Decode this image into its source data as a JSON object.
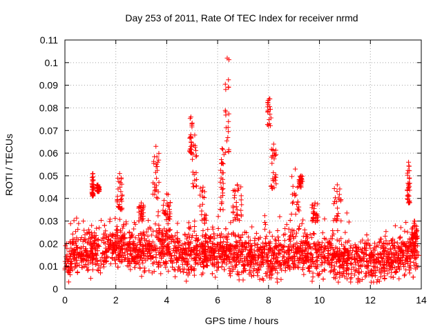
{
  "chart_data": {
    "type": "scatter",
    "title": "Day 253 of 2011, Rate Of TEC Index for receiver nrmd",
    "xlabel": "GPS time / hours",
    "ylabel": "ROTI / TECUs",
    "xlim": [
      0,
      14
    ],
    "ylim": [
      0,
      0.11
    ],
    "x_ticks": [
      0,
      2,
      4,
      6,
      8,
      10,
      12,
      14
    ],
    "x_tick_labels": [
      "0",
      "2",
      "4",
      "6",
      "8",
      "10",
      "12",
      "14"
    ],
    "y_ticks": [
      0,
      0.01,
      0.02,
      0.03,
      0.04,
      0.05,
      0.06,
      0.07,
      0.08,
      0.09,
      0.1,
      0.11
    ],
    "y_tick_labels": [
      "0",
      "0.01",
      "0.02",
      "0.03",
      "0.04",
      "0.05",
      "0.06",
      "0.07",
      "0.08",
      "0.09",
      "0.1",
      "0.11"
    ],
    "grid": true,
    "marker": "+",
    "color": "#ff0000",
    "series": [
      {
        "name": "ROTI",
        "baseline_profile": [
          [
            0.0,
            0.012
          ],
          [
            0.5,
            0.016
          ],
          [
            1.0,
            0.016
          ],
          [
            1.5,
            0.017
          ],
          [
            2.0,
            0.019
          ],
          [
            2.5,
            0.018
          ],
          [
            3.0,
            0.017
          ],
          [
            3.5,
            0.017
          ],
          [
            4.0,
            0.018
          ],
          [
            4.5,
            0.016
          ],
          [
            5.0,
            0.016
          ],
          [
            5.5,
            0.016
          ],
          [
            6.0,
            0.016
          ],
          [
            6.5,
            0.016
          ],
          [
            7.0,
            0.015
          ],
          [
            7.5,
            0.014
          ],
          [
            8.0,
            0.014
          ],
          [
            8.5,
            0.014
          ],
          [
            9.0,
            0.016
          ],
          [
            9.5,
            0.016
          ],
          [
            10.0,
            0.015
          ],
          [
            10.5,
            0.014
          ],
          [
            11.0,
            0.013
          ],
          [
            11.5,
            0.012
          ],
          [
            12.0,
            0.012
          ],
          [
            12.5,
            0.013
          ],
          [
            13.0,
            0.014
          ],
          [
            13.5,
            0.015
          ],
          [
            13.9,
            0.016
          ]
        ],
        "spikes": [
          {
            "x": [
              1.05,
              1.15
            ],
            "y": [
              0.041,
              0.051
            ]
          },
          {
            "x": [
              1.25,
              1.35
            ],
            "y": [
              0.043,
              0.046
            ]
          },
          {
            "x": [
              2.05,
              2.25
            ],
            "y": [
              0.035,
              0.051
            ]
          },
          {
            "x": [
              2.9,
              3.1
            ],
            "y": [
              0.03,
              0.038
            ]
          },
          {
            "x": [
              3.45,
              3.7
            ],
            "y": [
              0.04,
              0.063
            ]
          },
          {
            "x": [
              3.85,
              4.15
            ],
            "y": [
              0.03,
              0.042
            ]
          },
          {
            "x": [
              4.9,
              5.0
            ],
            "y": [
              0.06,
              0.076
            ]
          },
          {
            "x": [
              5.0,
              5.2
            ],
            "y": [
              0.045,
              0.068
            ]
          },
          {
            "x": [
              5.3,
              5.55
            ],
            "y": [
              0.03,
              0.045
            ]
          },
          {
            "x": [
              6.1,
              6.25
            ],
            "y": [
              0.035,
              0.062
            ]
          },
          {
            "x": [
              6.3,
              6.45
            ],
            "y": [
              0.06,
              0.102
            ]
          },
          {
            "x": [
              6.6,
              6.95
            ],
            "y": [
              0.03,
              0.046
            ]
          },
          {
            "x": [
              7.95,
              8.1
            ],
            "y": [
              0.072,
              0.084
            ]
          },
          {
            "x": [
              8.1,
              8.3
            ],
            "y": [
              0.044,
              0.064
            ]
          },
          {
            "x": [
              8.9,
              9.2
            ],
            "y": [
              0.033,
              0.053
            ]
          },
          {
            "x": [
              9.2,
              9.35
            ],
            "y": [
              0.045,
              0.05
            ]
          },
          {
            "x": [
              9.7,
              9.95
            ],
            "y": [
              0.03,
              0.038
            ]
          },
          {
            "x": [
              10.55,
              10.85
            ],
            "y": [
              0.03,
              0.046
            ]
          },
          {
            "x": [
              13.45,
              13.55
            ],
            "y": [
              0.038,
              0.056
            ]
          },
          {
            "x": [
              13.6,
              13.85
            ],
            "y": [
              0.022,
              0.03
            ]
          }
        ]
      }
    ]
  }
}
